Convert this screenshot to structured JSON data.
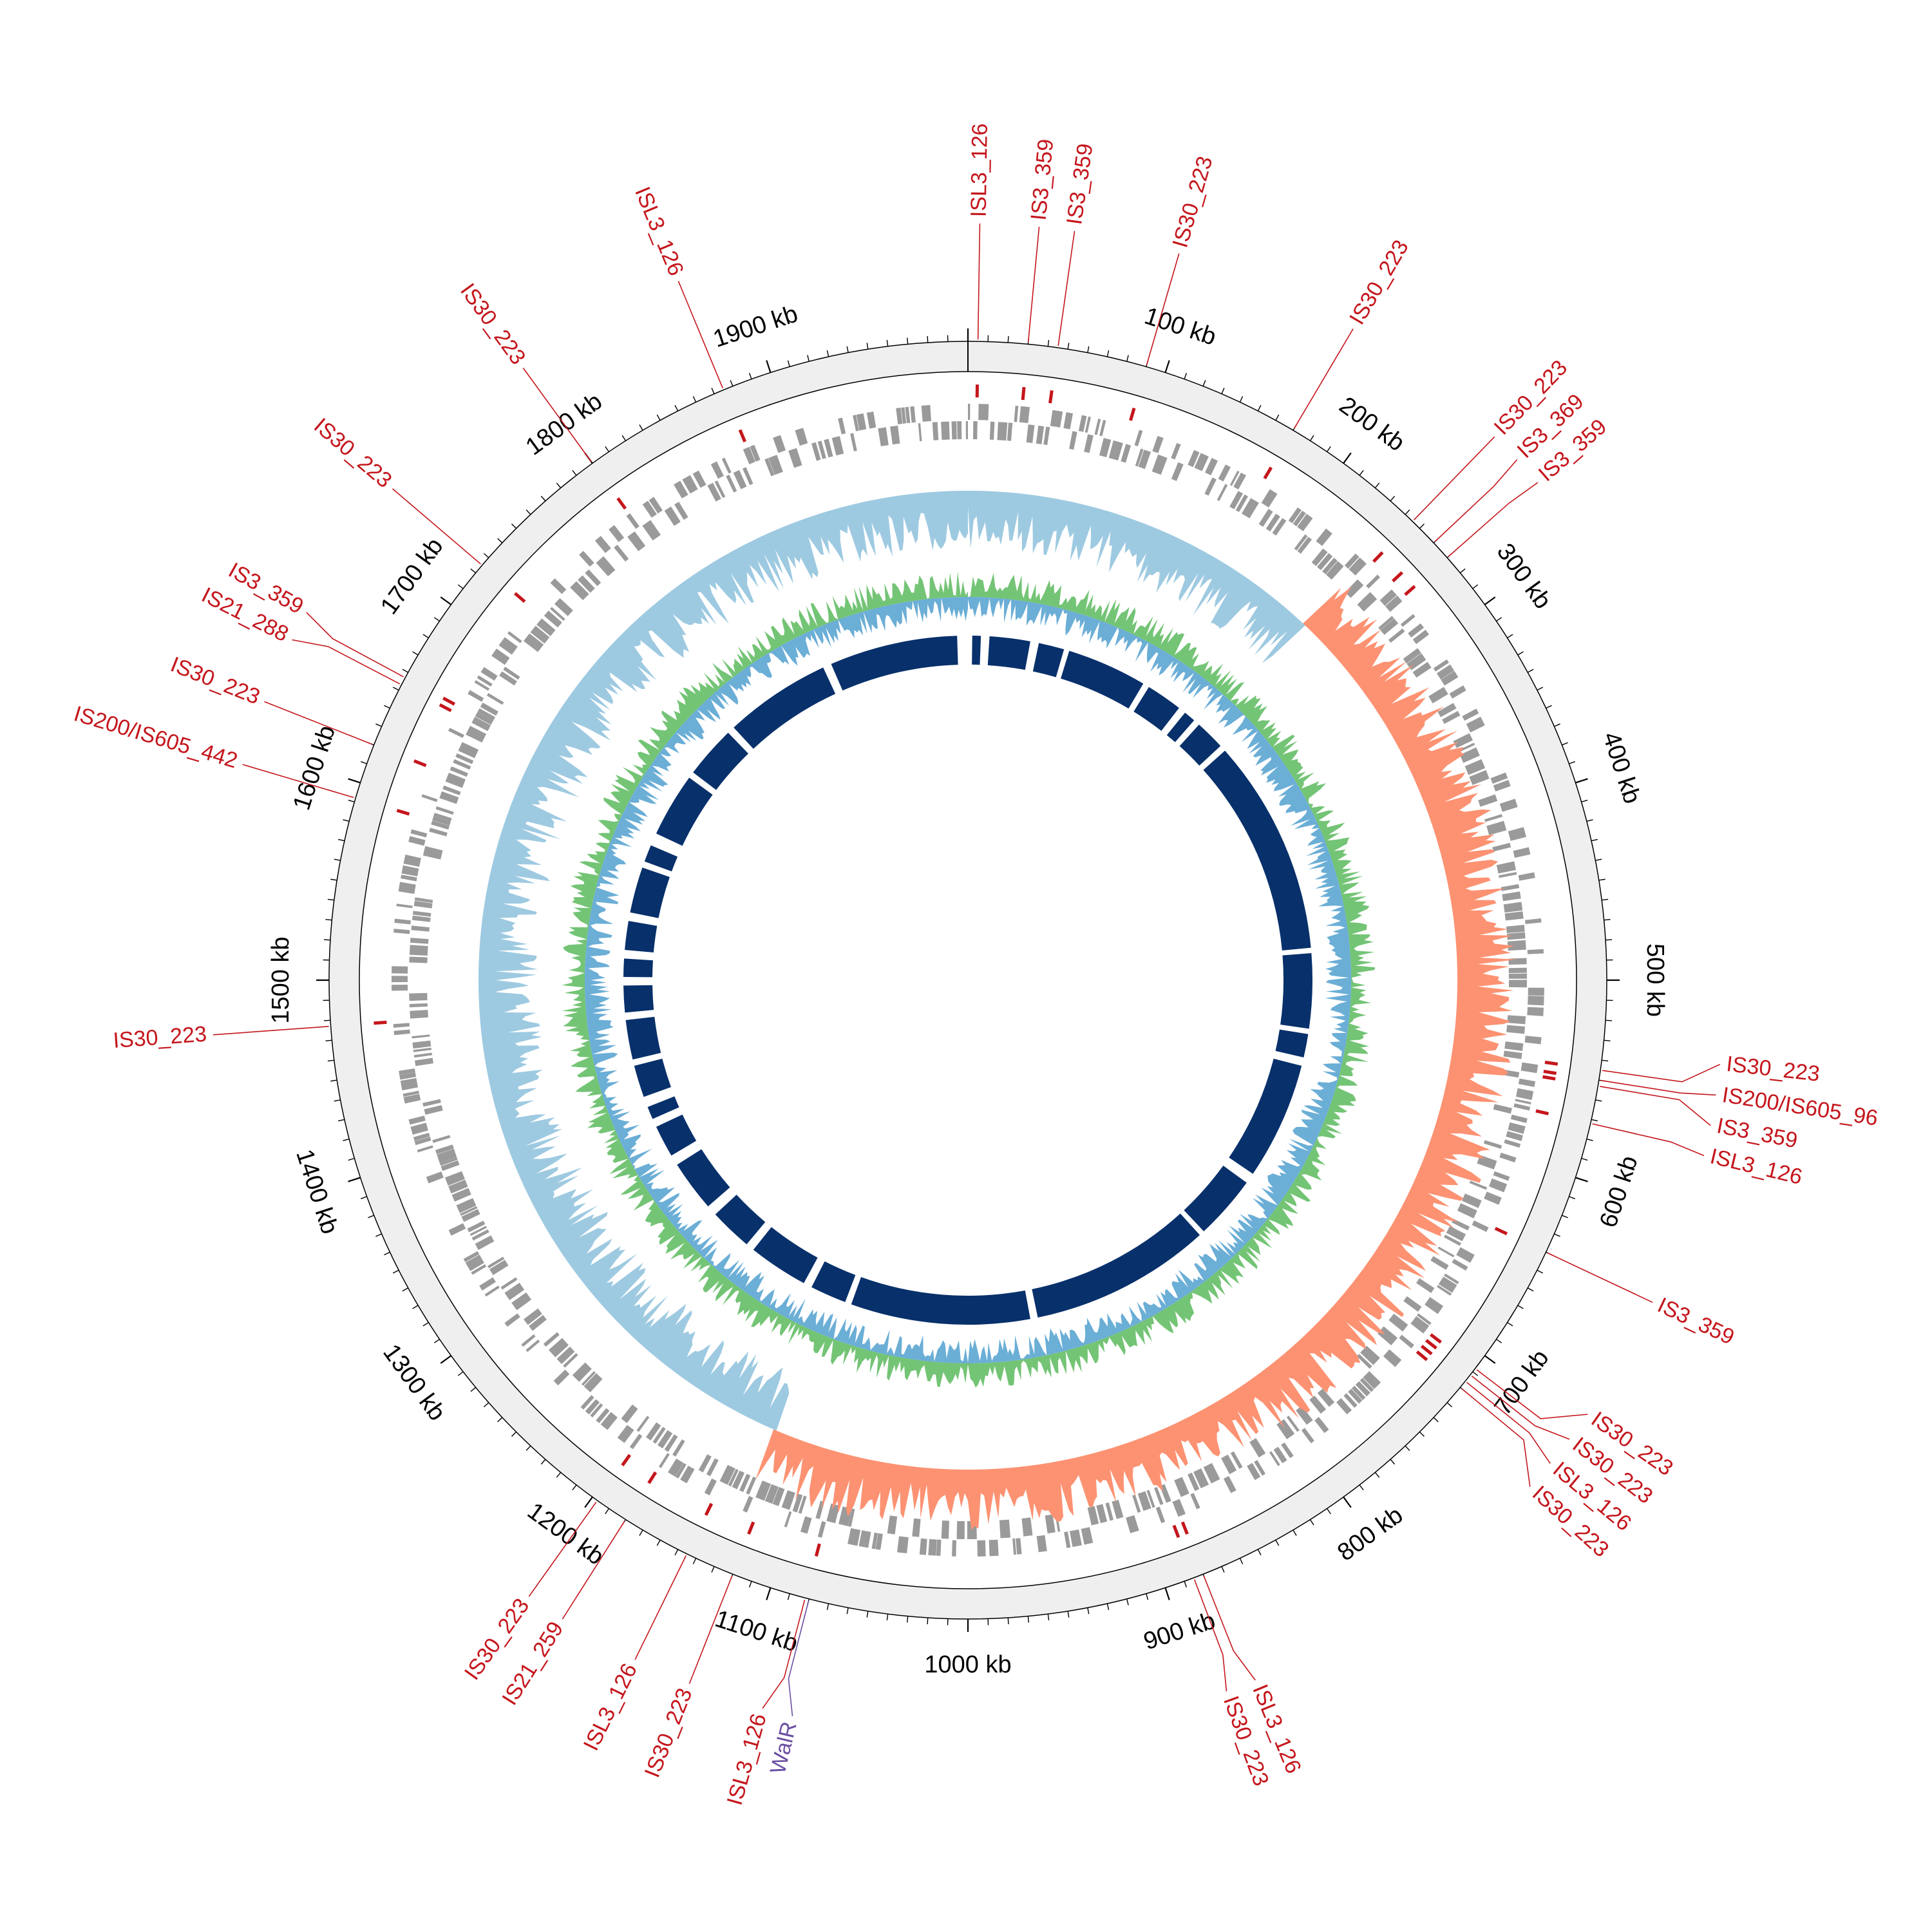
{
  "genome": {
    "length_kb": 2000
  },
  "scale": {
    "unit": "kb",
    "labels": [
      {
        "kb": 100,
        "text": "100 kb"
      },
      {
        "kb": 200,
        "text": "200 kb"
      },
      {
        "kb": 300,
        "text": "300 kb"
      },
      {
        "kb": 400,
        "text": "400 kb"
      },
      {
        "kb": 500,
        "text": "500 kb"
      },
      {
        "kb": 600,
        "text": "600 kb"
      },
      {
        "kb": 700,
        "text": "700 kb"
      },
      {
        "kb": 800,
        "text": "800 kb"
      },
      {
        "kb": 900,
        "text": "900 kb"
      },
      {
        "kb": 1000,
        "text": "1000 kb"
      },
      {
        "kb": 1100,
        "text": "1100 kb"
      },
      {
        "kb": 1200,
        "text": "1200 kb"
      },
      {
        "kb": 1300,
        "text": "1300 kb"
      },
      {
        "kb": 1400,
        "text": "1400 kb"
      },
      {
        "kb": 1500,
        "text": "1500 kb"
      },
      {
        "kb": 1600,
        "text": "1600 kb"
      },
      {
        "kb": 1700,
        "text": "1700 kb"
      },
      {
        "kb": 1800,
        "text": "1800 kb"
      },
      {
        "kb": 1900,
        "text": "1900 kb"
      }
    ]
  },
  "features": [
    {
      "kb": 5,
      "text": "ISL3_126"
    },
    {
      "kb": 30,
      "text": "IS3_359"
    },
    {
      "kb": 45,
      "text": "IS3_359"
    },
    {
      "kb": 90,
      "text": "IS30_223"
    },
    {
      "kb": 170,
      "text": "IS30_223"
    },
    {
      "kb": 245,
      "text": "IS30_223"
    },
    {
      "kb": 260,
      "text": "IS3_369"
    },
    {
      "kb": 270,
      "text": "IS3_359"
    },
    {
      "kb": 545,
      "text": "IS30_223"
    },
    {
      "kb": 550,
      "text": "IS200/IS605_96"
    },
    {
      "kb": 553,
      "text": "IS3_359"
    },
    {
      "kb": 572,
      "text": "ISL3_126"
    },
    {
      "kb": 640,
      "text": "IS3_359"
    },
    {
      "kb": 708,
      "text": "IS30_223"
    },
    {
      "kb": 712,
      "text": "IS30_223"
    },
    {
      "kb": 716,
      "text": "ISL3_126"
    },
    {
      "kb": 720,
      "text": "IS30_223"
    },
    {
      "kb": 880,
      "text": "ISL3_126"
    },
    {
      "kb": 885,
      "text": "IS30_223"
    },
    {
      "kb": 1080,
      "text": "WalR"
    },
    {
      "kb": 1082,
      "text": "ISL3_126"
    },
    {
      "kb": 1120,
      "text": "IS30_223"
    },
    {
      "kb": 1145,
      "text": "ISL3_126"
    },
    {
      "kb": 1180,
      "text": "IS21_259"
    },
    {
      "kb": 1197,
      "text": "IS30_223"
    },
    {
      "kb": 1477,
      "text": "IS30_223"
    },
    {
      "kb": 1592,
      "text": "IS200/IS605_442"
    },
    {
      "kb": 1620,
      "text": "IS30_223"
    },
    {
      "kb": 1653,
      "text": "IS21_288"
    },
    {
      "kb": 1657,
      "text": "IS3_359"
    },
    {
      "kb": 1725,
      "text": "IS30_223"
    },
    {
      "kb": 1800,
      "text": "IS30_223"
    },
    {
      "kb": 1875,
      "text": "ISL3_126"
    }
  ],
  "colors": {
    "is_element": "#c4161c",
    "walr": "#6a4ea2",
    "cds": "#9a9a9a",
    "gc_skew_negative": "#9ecae1",
    "gc_skew_positive": "#fc9272",
    "gc_content_high": "#74c476",
    "gc_content_low": "#6baed6",
    "homology": "#08306b",
    "backbone": "#efefef"
  }
}
